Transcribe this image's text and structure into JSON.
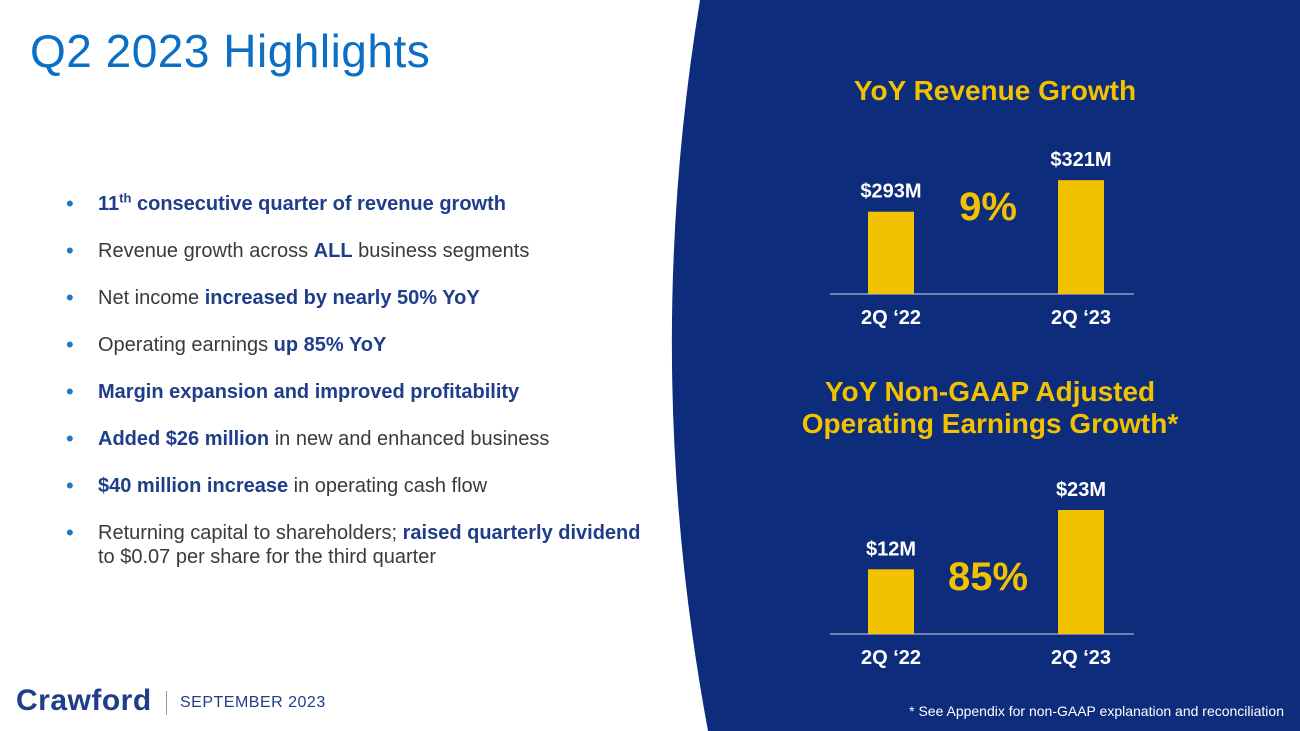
{
  "slide": {
    "title": "Q2 2023 Highlights",
    "bullets": [
      {
        "parts": [
          {
            "text": "11",
            "bold": true
          },
          {
            "text": "th",
            "bold": true,
            "sup": true
          },
          {
            "text": " consecutive quarter of revenue growth",
            "bold": true
          }
        ]
      },
      {
        "parts": [
          {
            "text": "Revenue growth across "
          },
          {
            "text": "ALL",
            "bold": true
          },
          {
            "text": " business segments"
          }
        ]
      },
      {
        "parts": [
          {
            "text": "Net income "
          },
          {
            "text": "increased by nearly 50% YoY",
            "bold": true
          }
        ]
      },
      {
        "parts": [
          {
            "text": "Operating earnings "
          },
          {
            "text": "up 85% YoY",
            "bold": true
          }
        ]
      },
      {
        "parts": [
          {
            "text": "Margin expansion and improved profitability",
            "bold": true
          }
        ]
      },
      {
        "parts": [
          {
            "text": "Added $26 million",
            "bold": true
          },
          {
            "text": " in new and enhanced business"
          }
        ]
      },
      {
        "parts": [
          {
            "text": "$40 million increase",
            "bold": true
          },
          {
            "text": " in operating cash flow"
          }
        ]
      },
      {
        "parts": [
          {
            "text": "Returning capital to shareholders; "
          },
          {
            "text": "raised quarterly dividend",
            "bold": true
          },
          {
            "text": " to $0.07 per share for the third quarter"
          }
        ]
      }
    ],
    "footer": {
      "logo": "Crawford",
      "date": "SEPTEMBER 2023"
    },
    "footnote": "* See Appendix for non-GAAP explanation and reconciliation"
  },
  "colors": {
    "navy": "#0d2d7c",
    "gold": "#f2c200",
    "title_blue": "#0b6fc6",
    "bullet_bold": "#1f3d8a"
  },
  "chart_data": [
    {
      "type": "bar",
      "title": "YoY Revenue Growth",
      "categories": [
        "2Q ‘22",
        "2Q ‘23"
      ],
      "values": [
        293,
        321
      ],
      "labels": [
        "$293M",
        "$321M"
      ],
      "unit": "$M",
      "growth": "9%",
      "ylim": [
        220,
        330
      ]
    },
    {
      "type": "bar",
      "title": "YoY Non-GAAP Adjusted Operating Earnings Growth*",
      "categories": [
        "2Q ‘22",
        "2Q ‘23"
      ],
      "values": [
        12,
        23
      ],
      "labels": [
        "$12M",
        "$23M"
      ],
      "unit": "$M",
      "growth": "85%",
      "ylim": [
        0,
        23
      ]
    }
  ]
}
